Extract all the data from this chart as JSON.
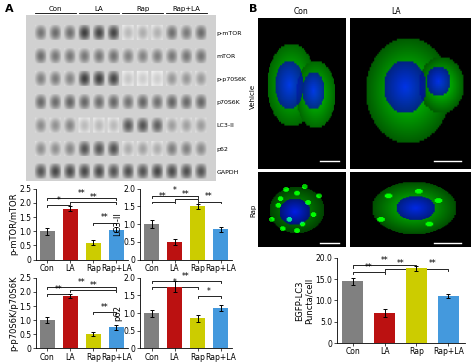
{
  "categories": [
    "Con",
    "LA",
    "Rap",
    "Rap+LA"
  ],
  "bar_colors": [
    "#808080",
    "#BB1111",
    "#CCCC00",
    "#4499DD"
  ],
  "pmtor_values": [
    1.0,
    1.8,
    0.6,
    1.05
  ],
  "pmtor_errors": [
    0.13,
    0.08,
    0.08,
    0.09
  ],
  "pmtor_ylabel": "p-mTOR/mTOR",
  "pmtor_ylim": [
    0,
    2.5
  ],
  "pmtor_yticks": [
    0.0,
    0.5,
    1.0,
    1.5,
    2.0,
    2.5
  ],
  "lc3_values": [
    1.0,
    0.5,
    1.5,
    0.85
  ],
  "lc3_errors": [
    0.12,
    0.08,
    0.06,
    0.08
  ],
  "lc3_ylabel": "LC3-II",
  "lc3_ylim": [
    0,
    2.0
  ],
  "lc3_yticks": [
    0.0,
    0.5,
    1.0,
    1.5,
    2.0
  ],
  "egfp_values": [
    14.5,
    7.0,
    17.5,
    11.0
  ],
  "egfp_errors": [
    0.8,
    0.9,
    0.5,
    0.5
  ],
  "egfp_ylabel": "EGFP-LC3\nPuncta/cell",
  "egfp_ylim": [
    0,
    20
  ],
  "egfp_yticks": [
    0,
    5,
    10,
    15,
    20
  ],
  "pp70_values": [
    1.0,
    1.85,
    0.5,
    0.75
  ],
  "pp70_errors": [
    0.1,
    0.08,
    0.07,
    0.08
  ],
  "pp70_ylabel": "p-p70S6K/p70S6K",
  "pp70_ylim": [
    0,
    2.5
  ],
  "pp70_yticks": [
    0.0,
    0.5,
    1.0,
    1.5,
    2.0,
    2.5
  ],
  "p62_values": [
    1.0,
    1.75,
    0.85,
    1.15
  ],
  "p62_errors": [
    0.1,
    0.15,
    0.1,
    0.08
  ],
  "p62_ylabel": "p62",
  "p62_ylim": [
    0,
    2.0
  ],
  "p62_yticks": [
    0.0,
    0.5,
    1.0,
    1.5,
    2.0
  ],
  "band_labels": [
    "p-mTOR",
    "mTOR",
    "p-p70S6K",
    "p70S6K",
    "LC3-II",
    "p62",
    "GAPDH"
  ],
  "group_labels": [
    "Con",
    "LA",
    "Rap",
    "Rap+LA"
  ],
  "lanes_per_group": 3,
  "bar_width": 0.65,
  "tick_fontsize": 5.5,
  "label_fontsize": 6,
  "sig_fontsize": 5.5
}
